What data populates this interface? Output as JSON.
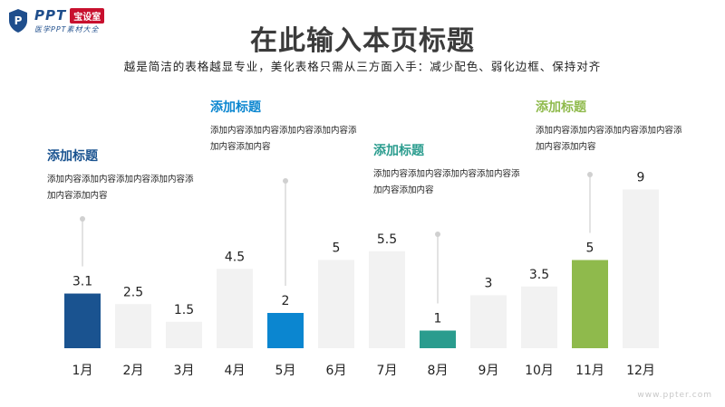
{
  "logo": {
    "brand": "PPT",
    "badge": "宝设室",
    "tagline": "医学PPT素材大全"
  },
  "page": {
    "title": "在此输入本页标题",
    "subtitle": "越是简洁的表格越显专业，美化表格只需从三方面入手：减少配色、弱化边框、保持对齐"
  },
  "chart_data": {
    "type": "bar",
    "categories": [
      "1月",
      "2月",
      "3月",
      "4月",
      "5月",
      "6月",
      "7月",
      "8月",
      "9月",
      "10月",
      "11月",
      "12月"
    ],
    "values": [
      3.1,
      2.5,
      1.5,
      4.5,
      2,
      5,
      5.5,
      1,
      3,
      3.5,
      5,
      9
    ],
    "value_labels": [
      "3.1",
      "2.5",
      "1.5",
      "4.5",
      "2",
      "5",
      "5.5",
      "1",
      "3",
      "3.5",
      "5",
      "9"
    ],
    "ylim": [
      0,
      9
    ],
    "default_color": "#f2f2f2",
    "highlights": [
      {
        "index": 0,
        "color": "#1a5390"
      },
      {
        "index": 4,
        "color": "#0b86d0"
      },
      {
        "index": 7,
        "color": "#2a9c8e"
      },
      {
        "index": 10,
        "color": "#8fba4c"
      }
    ],
    "xlabel": "",
    "ylabel": "",
    "grid": false,
    "legend": "none"
  },
  "callouts": [
    {
      "bar_index": 0,
      "title": "添加标题",
      "body": "添加内容添加内容添加内容添加内容添加内容添加内容",
      "color": "#1a5390"
    },
    {
      "bar_index": 4,
      "title": "添加标题",
      "body": "添加内容添加内容添加内容添加内容添加内容添加内容",
      "color": "#0b86d0"
    },
    {
      "bar_index": 7,
      "title": "添加标题",
      "body": "添加内容添加内容添加内容添加内容添加内容添加内容",
      "color": "#2a9c8e"
    },
    {
      "bar_index": 10,
      "title": "添加标题",
      "body": "添加内容添加内容添加内容添加内容添加内容添加内容",
      "color": "#8fba4c"
    }
  ],
  "footer": {
    "watermark": "www.ppter.com"
  }
}
